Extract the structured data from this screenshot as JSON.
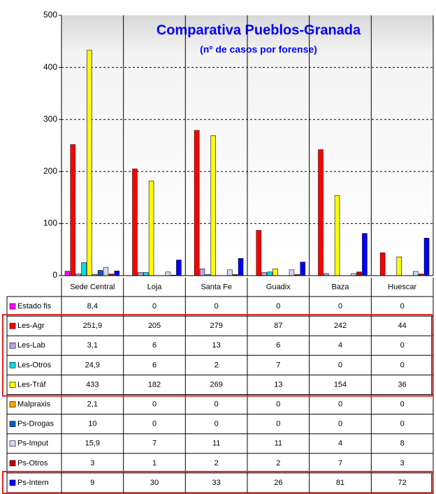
{
  "chart_data": {
    "type": "bar",
    "title": "Comparativa Pueblos-Granada",
    "subtitle": "(nº de casos por forense)",
    "categories": [
      "Sede Central",
      "Loja",
      "Santa Fe",
      "Guadix",
      "Baza",
      "Huescar"
    ],
    "ylim": [
      0,
      500
    ],
    "yticks": [
      0,
      100,
      200,
      300,
      400,
      500
    ],
    "grid": true,
    "series": [
      {
        "name": "Estado fis",
        "color": "#ff00ff",
        "values": [
          8.4,
          0,
          0,
          0,
          0,
          0
        ],
        "value_labels": [
          "8,4",
          "0",
          "0",
          "0",
          "0",
          "0"
        ]
      },
      {
        "name": "Les-Agr",
        "color": "#ff0000",
        "values": [
          251.9,
          205,
          279,
          87,
          242,
          44
        ],
        "value_labels": [
          "251,9",
          "205",
          "279",
          "87",
          "242",
          "44"
        ]
      },
      {
        "name": "Les-Lab",
        "color": "#c8a0e8",
        "values": [
          3.1,
          6,
          13,
          6,
          4,
          0
        ],
        "value_labels": [
          "3,1",
          "6",
          "13",
          "6",
          "4",
          "0"
        ]
      },
      {
        "name": "Les-Otros",
        "color": "#00e0e0",
        "values": [
          24.9,
          6,
          2,
          7,
          0,
          0
        ],
        "value_labels": [
          "24,9",
          "6",
          "2",
          "7",
          "0",
          "0"
        ]
      },
      {
        "name": "Les-Tráf",
        "color": "#ffff00",
        "values": [
          433,
          182,
          269,
          13,
          154,
          36
        ]
      },
      {
        "name": "Malpraxis",
        "color": "#ffa500",
        "values": [
          2.1,
          0,
          0,
          0,
          0,
          0
        ],
        "value_labels": [
          "2,1",
          "0",
          "0",
          "0",
          "0",
          "0"
        ]
      },
      {
        "name": "Ps-Drogas",
        "color": "#0060c8",
        "values": [
          10,
          0,
          0,
          0,
          0,
          0
        ]
      },
      {
        "name": "Ps-Imput",
        "color": "#d8d8f4",
        "values": [
          15.9,
          7,
          11,
          11,
          4,
          8
        ],
        "value_labels": [
          "15,9",
          "7",
          "11",
          "11",
          "4",
          "8"
        ]
      },
      {
        "name": "Ps-Otros",
        "color": "#c00000",
        "values": [
          3,
          1,
          2,
          2,
          7,
          3
        ]
      },
      {
        "name": "Ps-Intern",
        "color": "#0000ff",
        "values": [
          9,
          30,
          33,
          26,
          81,
          72
        ]
      }
    ]
  }
}
